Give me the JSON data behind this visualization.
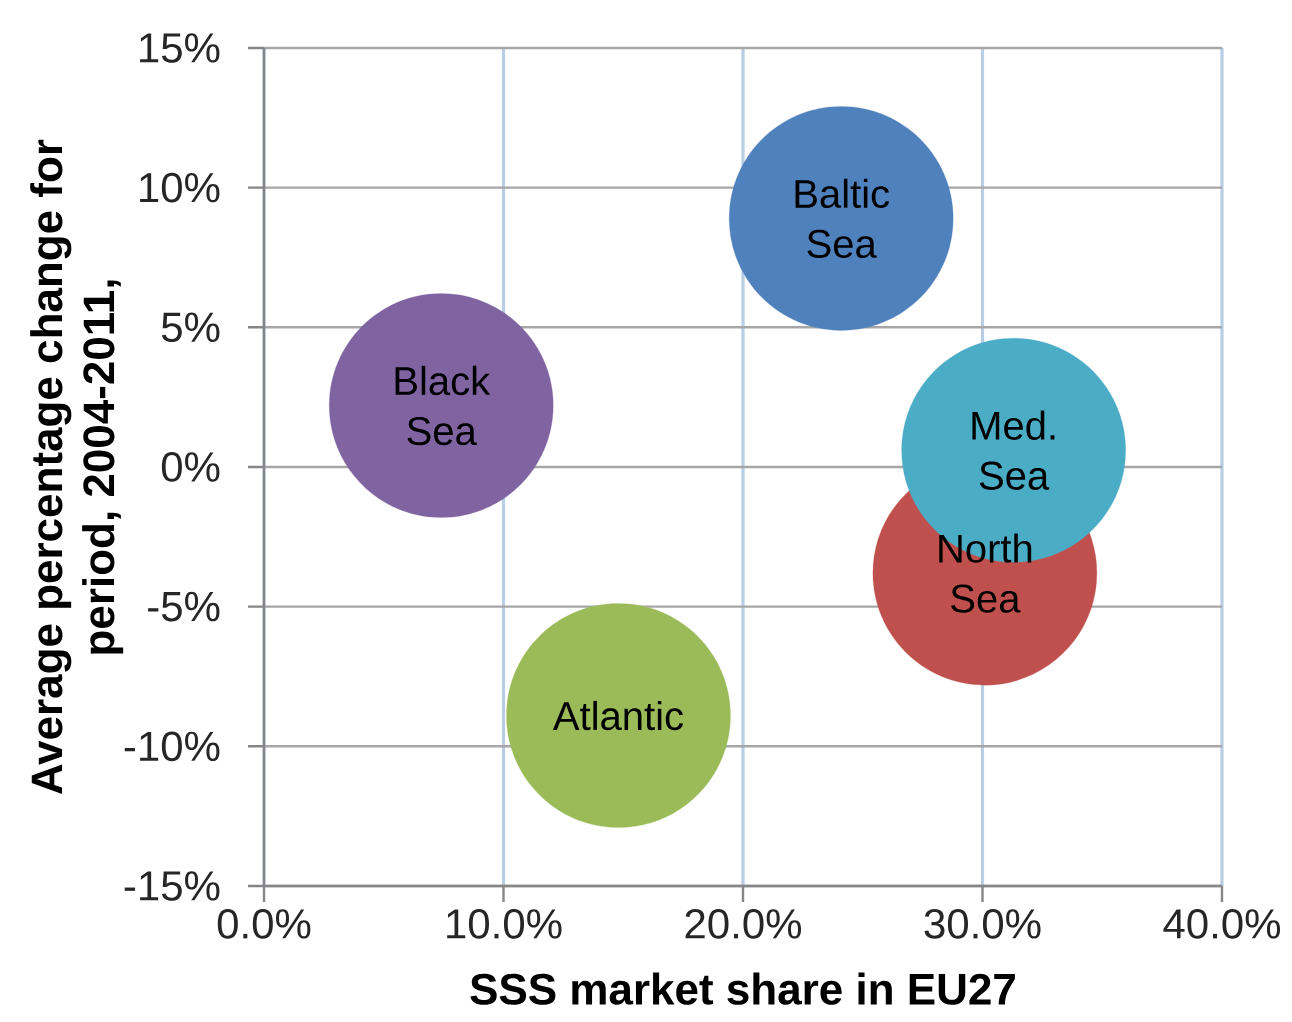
{
  "chart_data": {
    "type": "bubble",
    "xlabel": "SSS market share in EU27",
    "ylabel": "Average percentage change for period, 2004-2011,",
    "xlim": [
      0,
      40
    ],
    "xticks": [
      {
        "value": 0,
        "label": "0.0%"
      },
      {
        "value": 10,
        "label": "10.0%"
      },
      {
        "value": 20,
        "label": "20.0%"
      },
      {
        "value": 30,
        "label": "30.0%"
      },
      {
        "value": 40,
        "label": "40.0%"
      }
    ],
    "ylim": [
      -15,
      15
    ],
    "yticks": [
      {
        "value": -15,
        "label": "-15%"
      },
      {
        "value": -10,
        "label": "-10%"
      },
      {
        "value": -5,
        "label": "-5%"
      },
      {
        "value": 0,
        "label": "0%"
      },
      {
        "value": 5,
        "label": "5%"
      },
      {
        "value": 10,
        "label": "10%"
      },
      {
        "value": 15,
        "label": "15%"
      }
    ],
    "grid": true,
    "x": [
      7.4,
      14.8,
      24.1,
      30.1,
      31.3
    ],
    "values": [
      2.2,
      -8.9,
      8.9,
      -3.8,
      0.6
    ],
    "sizes": [
      1,
      1,
      1,
      1,
      1
    ],
    "colors": [
      "#8064a2",
      "#9bbb59",
      "#4f81bd",
      "#c0504d",
      "#4bacc6"
    ],
    "annotations": [
      {
        "text": "Black Sea",
        "x": 7.4,
        "y": 2.2
      },
      {
        "text": "Atlantic",
        "x": 14.8,
        "y": -8.9
      },
      {
        "text": "Baltic Sea",
        "x": 24.1,
        "y": 8.9
      },
      {
        "text": "North Sea",
        "x": 30.1,
        "y": -3.8
      },
      {
        "text": "Med. Sea",
        "x": 31.3,
        "y": 0.6
      }
    ]
  }
}
